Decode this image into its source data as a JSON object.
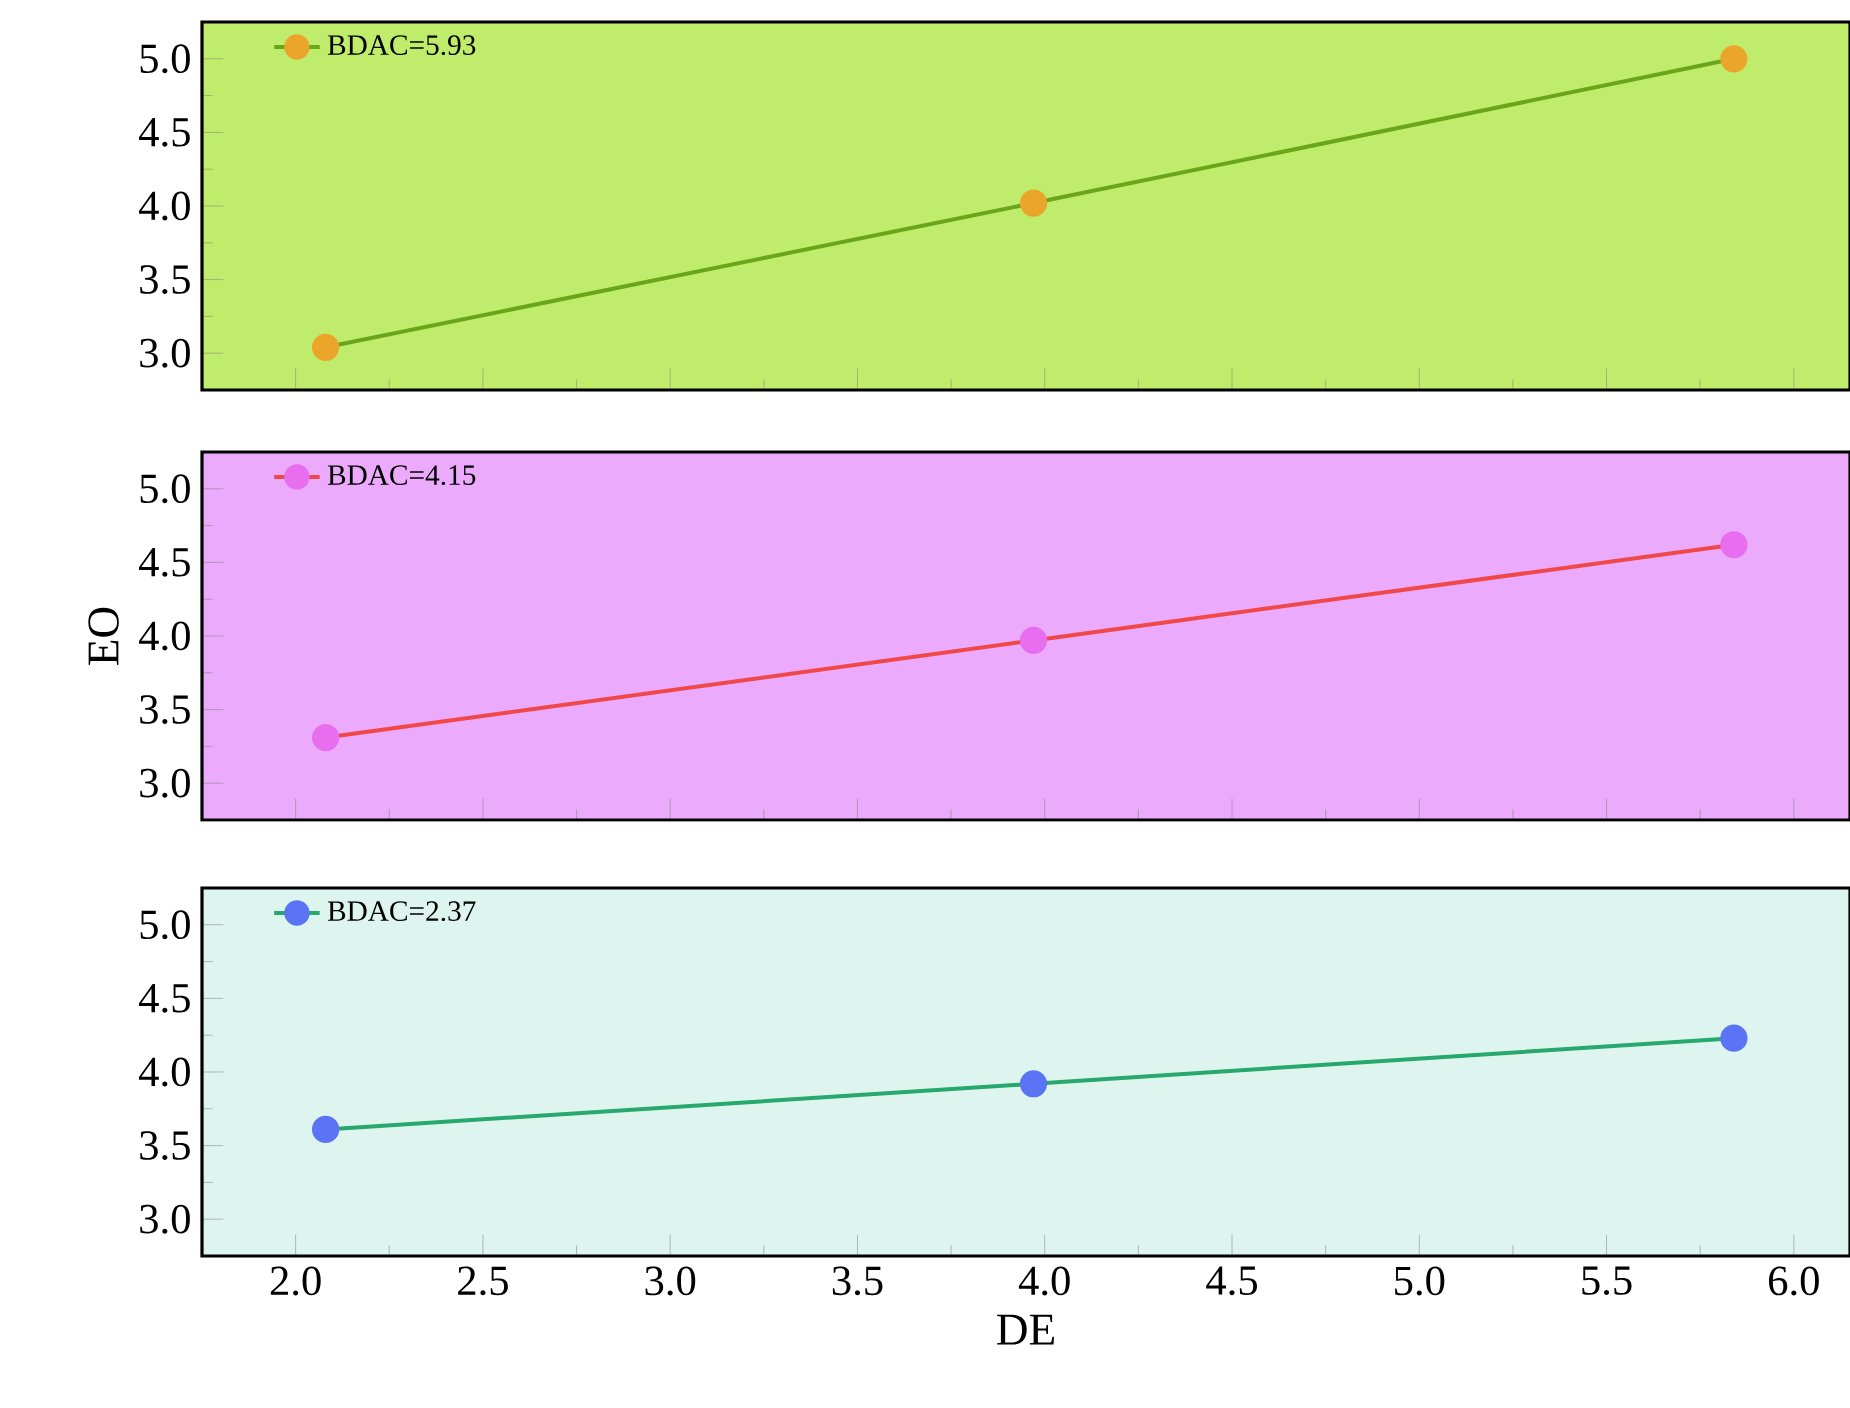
{
  "chart_data": [
    {
      "type": "line",
      "marker": "circle",
      "line_style": "solid",
      "legend": "top left",
      "grid": false,
      "tick_labels": "y",
      "xlim": [
        1.75,
        6.15
      ],
      "ylim": [
        2.75,
        5.25
      ],
      "xticks": [
        2,
        2.5,
        3,
        3.5,
        4,
        4.5,
        5,
        5.5,
        6
      ],
      "yticks": [
        {
          "value": 3,
          "label": "3.0"
        },
        {
          "value": 3.5,
          "label": "3.5"
        },
        {
          "value": 4,
          "label": "4.0"
        },
        {
          "value": 4.5,
          "label": "4.5"
        },
        {
          "value": 5,
          "label": "5.0"
        }
      ],
      "x": [
        2.08,
        3.97,
        5.84
      ],
      "series": [
        {
          "name": "BDAC=5.93",
          "color": "#6aa51a",
          "colors": [
            "#eba52a",
            "#eba52a",
            "#eba52a"
          ],
          "values": [
            3.04,
            4.02,
            5.0
          ]
        }
      ]
    },
    {
      "type": "line",
      "marker": "circle",
      "line_style": "solid",
      "legend": "top left",
      "grid": false,
      "tick_labels": "y",
      "ylabel": "EO",
      "xlim": [
        1.75,
        6.15
      ],
      "ylim": [
        2.75,
        5.25
      ],
      "xticks": [
        2,
        2.5,
        3,
        3.5,
        4,
        4.5,
        5,
        5.5,
        6
      ],
      "yticks": [
        {
          "value": 3,
          "label": "3.0"
        },
        {
          "value": 3.5,
          "label": "3.5"
        },
        {
          "value": 4,
          "label": "4.0"
        },
        {
          "value": 4.5,
          "label": "4.5"
        },
        {
          "value": 5,
          "label": "5.0"
        }
      ],
      "x": [
        2.08,
        3.97,
        5.84
      ],
      "series": [
        {
          "name": "BDAC=4.15",
          "color": "#f04848",
          "colors": [
            "#e86ef0",
            "#e86ef0",
            "#e86ef0"
          ],
          "values": [
            3.31,
            3.97,
            4.62
          ]
        }
      ]
    },
    {
      "type": "line",
      "marker": "circle",
      "line_style": "solid",
      "legend": "top left",
      "grid": false,
      "xlabel": "DE",
      "xlim": [
        1.75,
        6.15
      ],
      "ylim": [
        2.75,
        5.25
      ],
      "xticks": [
        {
          "value": 2,
          "label": "2.0"
        },
        {
          "value": 2.5,
          "label": "2.5"
        },
        {
          "value": 3,
          "label": "3.0"
        },
        {
          "value": 3.5,
          "label": "3.5"
        },
        {
          "value": 4,
          "label": "4.0"
        },
        {
          "value": 4.5,
          "label": "4.5"
        },
        {
          "value": 5,
          "label": "5.0"
        },
        {
          "value": 5.5,
          "label": "5.5"
        },
        {
          "value": 6,
          "label": "6.0"
        }
      ],
      "yticks": [
        {
          "value": 3,
          "label": "3.0"
        },
        {
          "value": 3.5,
          "label": "3.5"
        },
        {
          "value": 4,
          "label": "4.0"
        },
        {
          "value": 4.5,
          "label": "4.5"
        },
        {
          "value": 5,
          "label": "5.0"
        }
      ],
      "x": [
        2.08,
        3.97,
        5.84
      ],
      "series": [
        {
          "name": "BDAC=2.37",
          "color": "#27a86e",
          "colors": [
            "#5a74f5",
            "#5a74f5",
            "#5a74f5"
          ],
          "values": [
            3.61,
            3.92,
            4.23
          ]
        }
      ]
    }
  ]
}
